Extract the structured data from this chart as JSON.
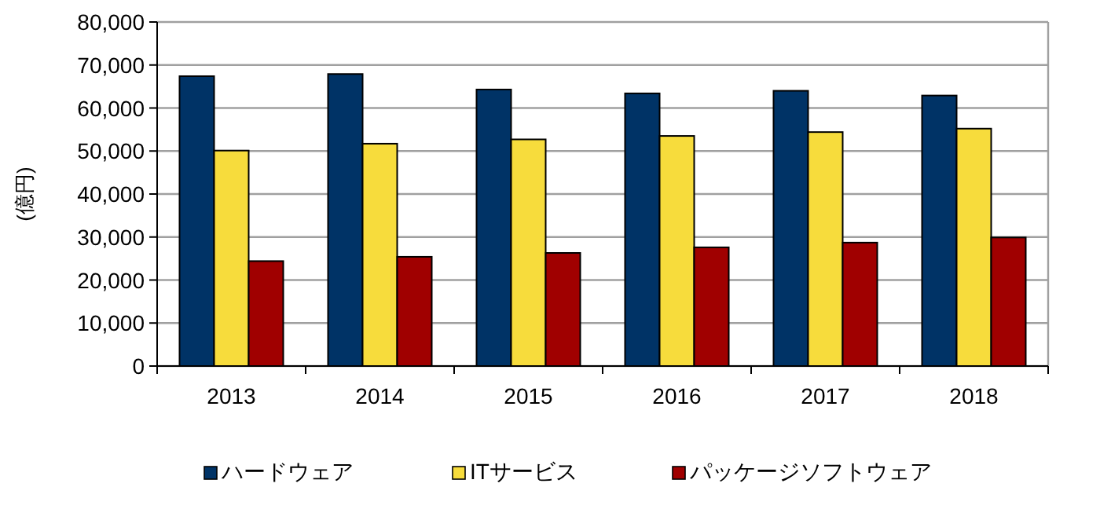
{
  "chart_data": {
    "type": "bar",
    "ylabel": "(億円)",
    "categories": [
      "2013",
      "2014",
      "2015",
      "2016",
      "2017",
      "2018"
    ],
    "series": [
      {
        "name": "ハードウェア",
        "color": "#003366",
        "values": [
          67400,
          67900,
          64300,
          63400,
          64000,
          62900
        ]
      },
      {
        "name": "ITサービス",
        "color": "#f7dc3c",
        "values": [
          50100,
          51700,
          52700,
          53500,
          54400,
          55200
        ]
      },
      {
        "name": "パッケージソフトウェア",
        "color": "#a00000",
        "values": [
          24400,
          25400,
          26300,
          27600,
          28700,
          29900
        ]
      }
    ],
    "ylim": [
      0,
      80000
    ],
    "yticks": [
      0,
      {
        "value": 10000,
        "label": "10,000"
      },
      {
        "value": 20000,
        "label": "20,000"
      },
      {
        "value": 30000,
        "label": "30,000"
      },
      {
        "value": 40000,
        "label": "40,000"
      },
      {
        "value": 50000,
        "label": "50,000"
      },
      {
        "value": 60000,
        "label": "60,000"
      },
      {
        "value": 70000,
        "label": "70,000"
      },
      {
        "value": 80000,
        "label": "80,000"
      }
    ],
    "grid": "y",
    "legend": "bottom"
  }
}
